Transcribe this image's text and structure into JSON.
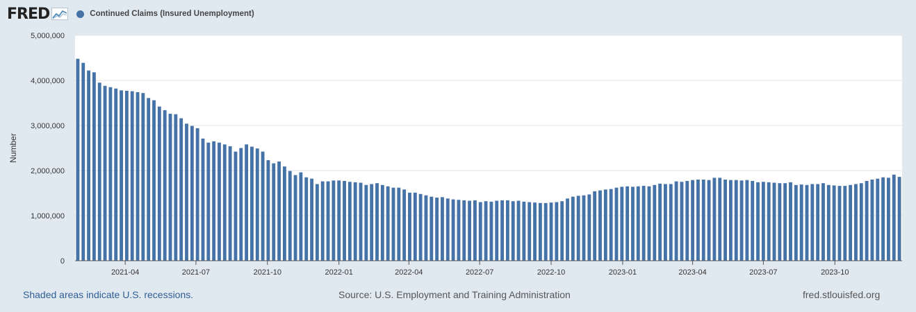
{
  "brand": {
    "logo_text": "FRED"
  },
  "colors": {
    "series": "#4572a7",
    "plot_background": "#ffffff",
    "page_background": "#e1e9f0",
    "grid": "#e6e6e6"
  },
  "chart_data": {
    "type": "bar",
    "title": "",
    "xlabel": "",
    "ylabel": "Number",
    "ylim": [
      0,
      5000000
    ],
    "yticks": [
      0,
      1000000,
      2000000,
      3000000,
      4000000,
      5000000
    ],
    "ytick_labels": [
      "0",
      "1,000,000",
      "2,000,000",
      "3,000,000",
      "4,000,000",
      "5,000,000"
    ],
    "xticks": [
      "2021-04",
      "2021-07",
      "2021-10",
      "2022-01",
      "2022-04",
      "2022-07",
      "2022-10",
      "2023-01",
      "2023-04",
      "2023-07",
      "2023-10"
    ],
    "grid": true,
    "legend_position": "top-left",
    "series": [
      {
        "name": "Continued Claims (Insured Unemployment)",
        "frequency": "weekly",
        "start": "2021-01-30",
        "values": [
          4480000,
          4390000,
          4220000,
          4180000,
          3950000,
          3880000,
          3850000,
          3820000,
          3780000,
          3770000,
          3760000,
          3740000,
          3720000,
          3610000,
          3560000,
          3420000,
          3340000,
          3260000,
          3250000,
          3160000,
          3040000,
          2990000,
          2940000,
          2710000,
          2620000,
          2650000,
          2620000,
          2580000,
          2540000,
          2420000,
          2500000,
          2580000,
          2530000,
          2490000,
          2420000,
          2230000,
          2160000,
          2200000,
          2090000,
          1990000,
          1900000,
          1960000,
          1850000,
          1820000,
          1700000,
          1760000,
          1760000,
          1780000,
          1780000,
          1770000,
          1750000,
          1740000,
          1730000,
          1680000,
          1700000,
          1720000,
          1680000,
          1650000,
          1620000,
          1620000,
          1580000,
          1510000,
          1510000,
          1480000,
          1450000,
          1420000,
          1400000,
          1410000,
          1380000,
          1360000,
          1350000,
          1340000,
          1330000,
          1340000,
          1300000,
          1320000,
          1310000,
          1330000,
          1340000,
          1340000,
          1320000,
          1330000,
          1310000,
          1300000,
          1290000,
          1280000,
          1280000,
          1290000,
          1300000,
          1320000,
          1380000,
          1420000,
          1440000,
          1450000,
          1470000,
          1540000,
          1560000,
          1580000,
          1590000,
          1620000,
          1640000,
          1650000,
          1640000,
          1650000,
          1660000,
          1650000,
          1680000,
          1710000,
          1700000,
          1700000,
          1760000,
          1750000,
          1770000,
          1790000,
          1800000,
          1800000,
          1790000,
          1840000,
          1840000,
          1800000,
          1790000,
          1790000,
          1780000,
          1790000,
          1770000,
          1740000,
          1750000,
          1740000,
          1730000,
          1720000,
          1720000,
          1740000,
          1680000,
          1690000,
          1680000,
          1700000,
          1700000,
          1720000,
          1680000,
          1670000,
          1660000,
          1660000,
          1680000,
          1700000,
          1720000,
          1770000,
          1800000,
          1820000,
          1850000,
          1840000,
          1910000,
          1860000
        ]
      }
    ]
  },
  "footer": {
    "recession_note": "Shaded areas indicate U.S. recessions.",
    "source": "Source: U.S. Employment and Training Administration",
    "site": "fred.stlouisfed.org"
  }
}
